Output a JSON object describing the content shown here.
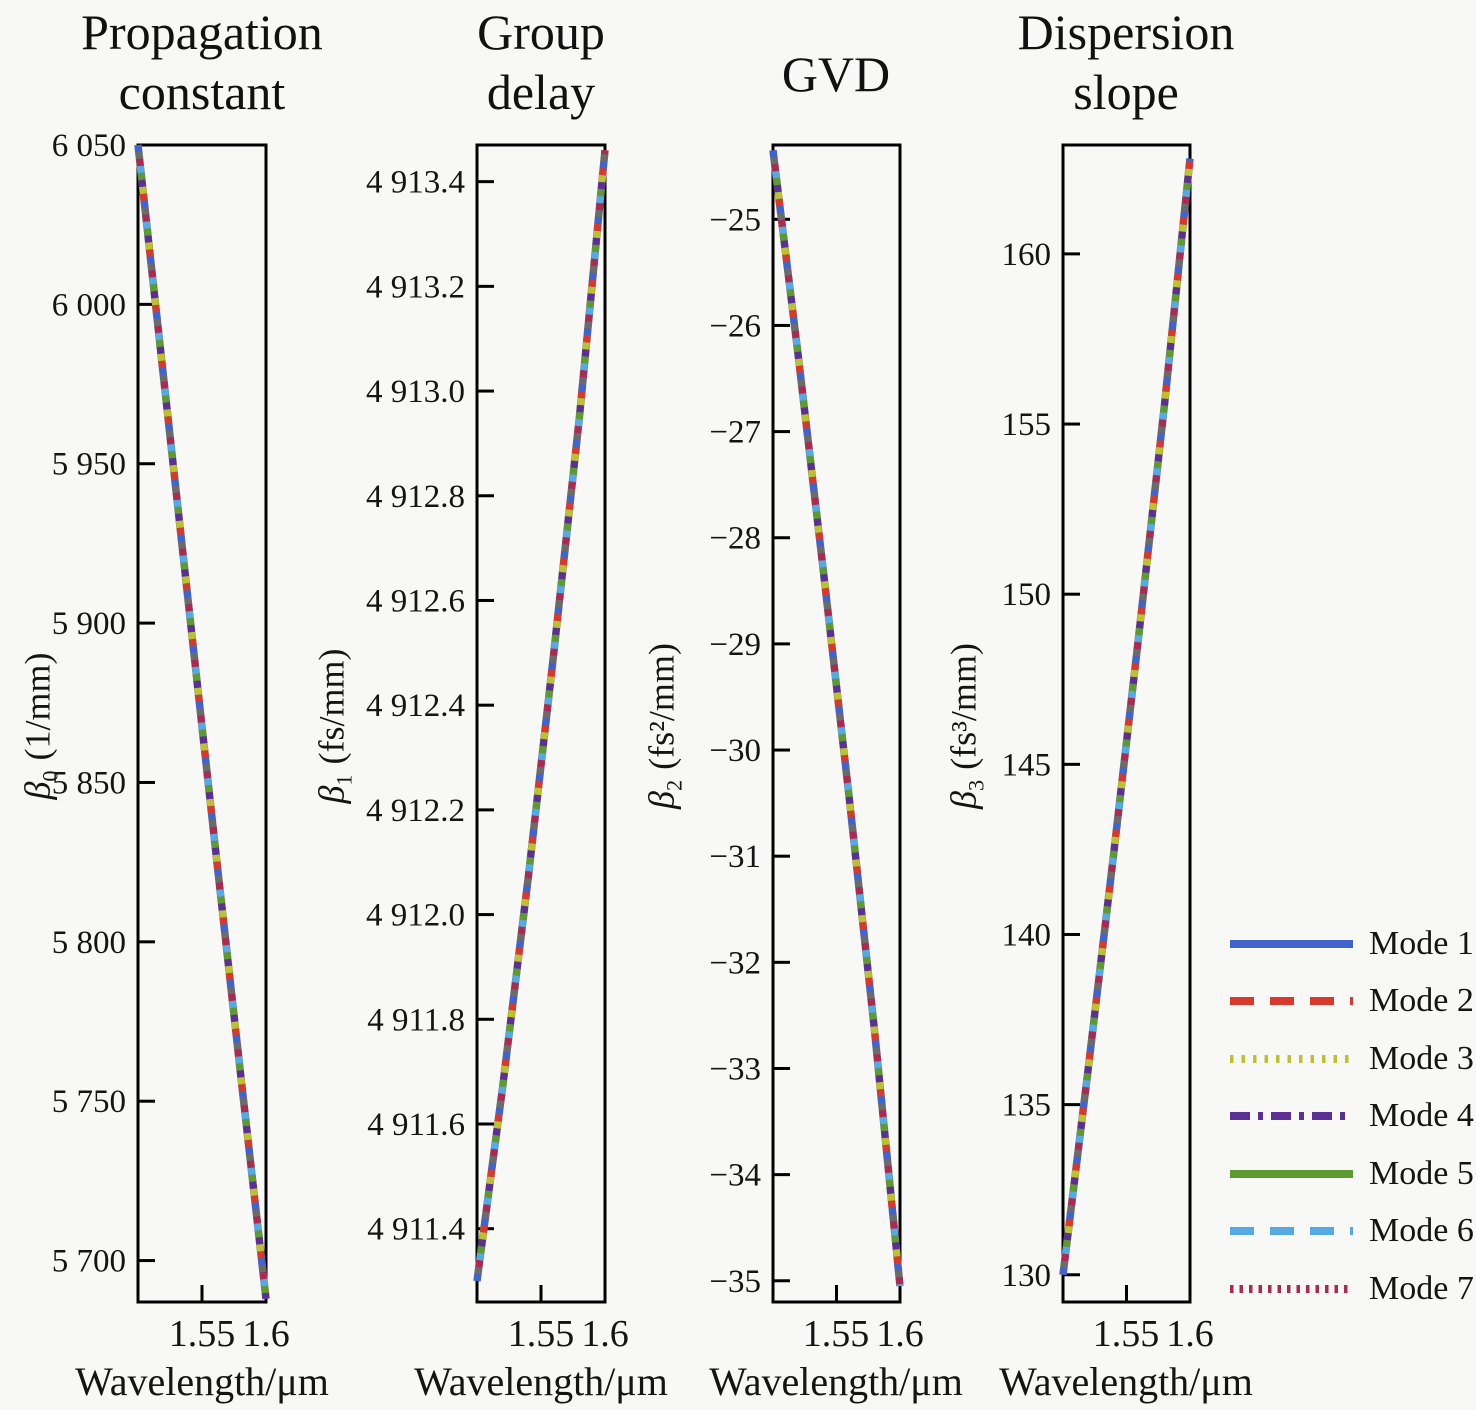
{
  "figure": {
    "x_axis_label": "Wavelength/μm",
    "x_tick_labels": [
      "1.55",
      "1.6"
    ]
  },
  "panels": [
    {
      "title": "Propagation\nconstant",
      "ylabel": {
        "symbol": "β",
        "sub": "0",
        "unit": "(1/mm)"
      },
      "y_tick_labels": [
        "6 050",
        "6 000",
        "5 950",
        "5 900",
        "5 850",
        "5 800",
        "5 750",
        "5 700"
      ]
    },
    {
      "title": "Group\ndelay",
      "ylabel": {
        "symbol": "β",
        "sub": "1",
        "unit": "(fs/mm)"
      },
      "y_tick_labels": [
        "4 913.4",
        "4 913.2",
        "4 913.0",
        "4 912.8",
        "4 912.6",
        "4 912.4",
        "4 912.2",
        "4 912.0",
        "4 911.8",
        "4 911.6",
        "4 911.4"
      ]
    },
    {
      "title": "GVD",
      "ylabel": {
        "symbol": "β",
        "sub": "2",
        "unit": "(fs²/mm)"
      },
      "y_tick_labels": [
        "−25",
        "−26",
        "−27",
        "−28",
        "−29",
        "−30",
        "−31",
        "−32",
        "−33",
        "−34",
        "−35"
      ]
    },
    {
      "title": "Dispersion\nslope",
      "ylabel": {
        "symbol": "β",
        "sub": "3",
        "unit": "(fs³/mm)"
      },
      "y_tick_labels": [
        "160",
        "155",
        "150",
        "145",
        "140",
        "135",
        "130"
      ]
    }
  ],
  "modes": [
    {
      "label": "Mode 1",
      "color": "#4163cd",
      "style": "solid"
    },
    {
      "label": "Mode 2",
      "color": "#d73a2c",
      "style": "dashed"
    },
    {
      "label": "Mode 3",
      "color": "#bcc22f",
      "style": "dotted"
    },
    {
      "label": "Mode 4",
      "color": "#5c2f94",
      "style": "dashdot"
    },
    {
      "label": "Mode 5",
      "color": "#5d9a31",
      "style": "solid"
    },
    {
      "label": "Mode 6",
      "color": "#55aae6",
      "style": "dashed"
    },
    {
      "label": "Mode 7",
      "color": "#aa2a52",
      "style": "dense-dotted"
    }
  ],
  "chart_data": [
    {
      "type": "line",
      "title": "Propagation constant",
      "xlabel": "Wavelength/μm",
      "ylabel": "β0 (1/mm)",
      "xlim": [
        1.5,
        1.6
      ],
      "ylim": [
        5687,
        6050
      ],
      "x_ticks": [
        1.55,
        1.6
      ],
      "y_ticks": [
        6050,
        6000,
        5950,
        5900,
        5850,
        5800,
        5750,
        5700
      ],
      "x": [
        1.5,
        1.52,
        1.54,
        1.56,
        1.58,
        1.6
      ],
      "series": [
        {
          "name": "Modes 1–7 (all overlapping)",
          "values": [
            6050,
            5977,
            5904,
            5831,
            5759,
            5688
          ]
        }
      ],
      "note": "All 7 mode curves coincide within line width",
      "grid": false
    },
    {
      "type": "line",
      "title": "Group delay",
      "xlabel": "Wavelength/μm",
      "ylabel": "β1 (fs/mm)",
      "xlim": [
        1.5,
        1.6
      ],
      "ylim": [
        4911.26,
        4913.47
      ],
      "x_ticks": [
        1.55,
        1.6
      ],
      "y_ticks": [
        4913.4,
        4913.2,
        4913.0,
        4912.8,
        4912.6,
        4912.4,
        4912.2,
        4912.0,
        4911.8,
        4911.6,
        4911.4
      ],
      "x": [
        1.5,
        1.52,
        1.54,
        1.56,
        1.58,
        1.6
      ],
      "series": [
        {
          "name": "Modes 1–7 (all overlapping)",
          "values": [
            4911.3,
            4911.67,
            4912.07,
            4912.5,
            4912.95,
            4913.46
          ]
        }
      ],
      "note": "All 7 mode curves coincide within line width",
      "grid": false
    },
    {
      "type": "line",
      "title": "GVD",
      "xlabel": "Wavelength/μm",
      "ylabel": "β2 (fs²/mm)",
      "xlim": [
        1.5,
        1.6
      ],
      "ylim": [
        -35.2,
        -24.3
      ],
      "x_ticks": [
        1.55,
        1.6
      ],
      "y_ticks": [
        -25,
        -26,
        -27,
        -28,
        -29,
        -30,
        -31,
        -32,
        -33,
        -34,
        -35
      ],
      "x": [
        1.5,
        1.52,
        1.54,
        1.56,
        1.58,
        1.6
      ],
      "series": [
        {
          "name": "Modes 1–7 (all overlapping)",
          "values": [
            -24.35,
            -26.3,
            -28.35,
            -30.45,
            -32.65,
            -35.05
          ]
        }
      ],
      "note": "All 7 mode curves coincide within line width",
      "grid": false
    },
    {
      "type": "line",
      "title": "Dispersion slope",
      "xlabel": "Wavelength/μm",
      "ylabel": "β3 (fs³/mm)",
      "xlim": [
        1.5,
        1.6
      ],
      "ylim": [
        129.2,
        163.2
      ],
      "x_ticks": [
        1.55,
        1.6
      ],
      "y_ticks": [
        160,
        155,
        150,
        145,
        140,
        135,
        130
      ],
      "x": [
        1.5,
        1.52,
        1.54,
        1.56,
        1.58,
        1.6
      ],
      "series": [
        {
          "name": "Modes 1–7 (all overlapping)",
          "values": [
            130.0,
            136.1,
            142.4,
            148.9,
            155.6,
            162.8
          ]
        }
      ],
      "note": "All 7 mode curves coincide within line width",
      "grid": false
    }
  ]
}
